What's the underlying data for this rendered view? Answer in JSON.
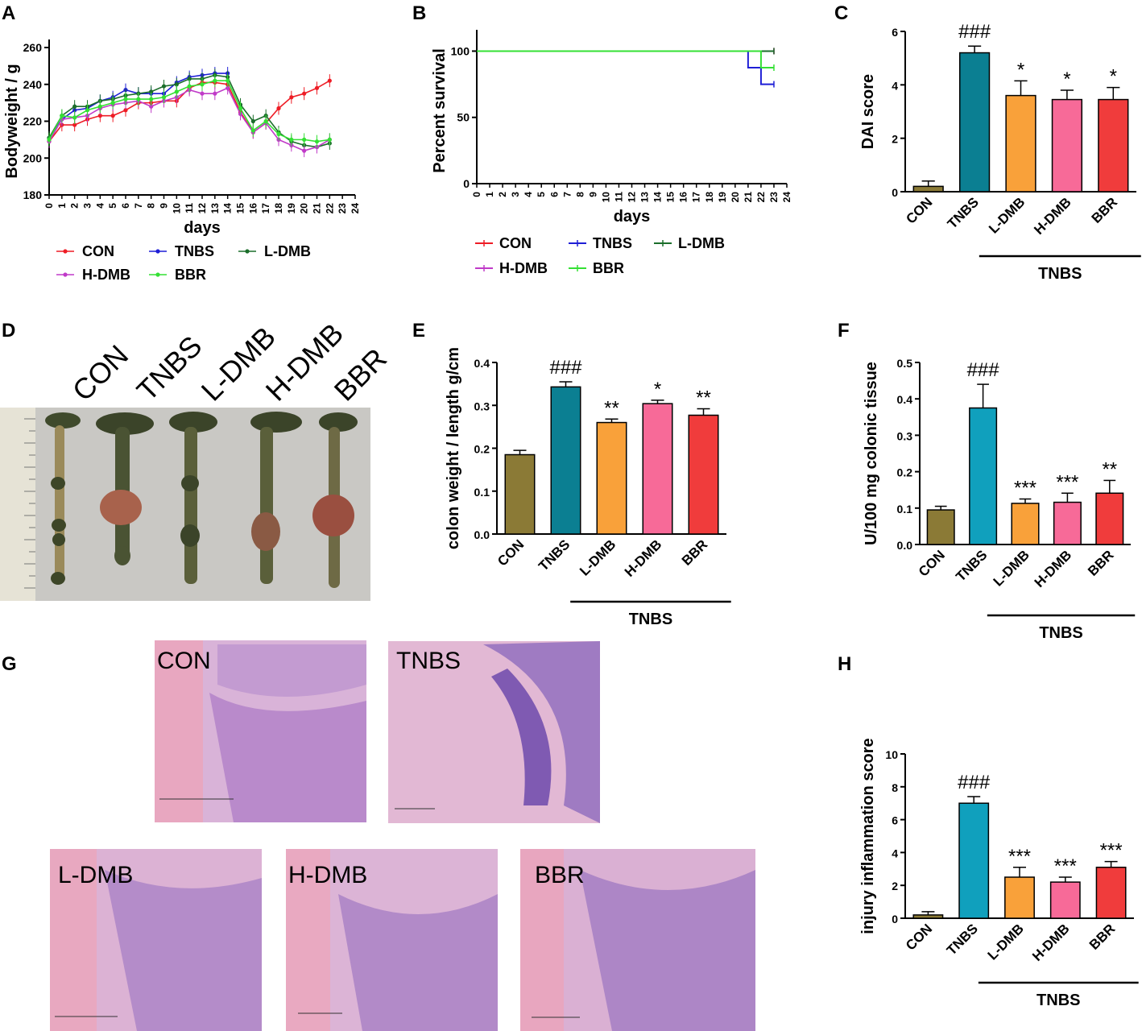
{
  "panels": {
    "a": "A",
    "b": "B",
    "c": "C",
    "d": "D",
    "e": "E",
    "f": "F",
    "g": "G",
    "h": "H"
  },
  "colors": {
    "CON_line": "#ee1c25",
    "TNBS_line": "#1f1fd6",
    "LDMB_line": "#1b6e2b",
    "HDMB_line": "#c03ac8",
    "BBR_line": "#34e034",
    "CON_bar": "#8b7a36",
    "TNBS_bar": "#0b7f92",
    "LDMB_bar": "#f9a13a",
    "HDMB_bar": "#f76a98",
    "BBR_bar": "#f03c3c",
    "TNBS_bar_light": "#10a0bd"
  },
  "groups": [
    "CON",
    "TNBS",
    "L-DMB",
    "H-DMB",
    "BBR"
  ],
  "tnbs_bracket_label": "TNBS",
  "photo": {
    "labels": [
      "CON",
      "TNBS",
      "L-DMB",
      "H-DMB",
      "BBR"
    ]
  },
  "histology": {
    "labels": [
      "CON",
      "TNBS",
      "L-DMB",
      "H-DMB",
      "BBR"
    ]
  },
  "chart_data": [
    {
      "id": "A",
      "type": "line",
      "title": "",
      "xlabel": "days",
      "ylabel": "Bodyweight / g",
      "xlim": [
        0,
        24
      ],
      "ylim": [
        180,
        260
      ],
      "yticks": [
        180,
        200,
        220,
        240,
        260
      ],
      "xticks": [
        0,
        1,
        2,
        3,
        4,
        5,
        6,
        7,
        8,
        9,
        10,
        11,
        12,
        13,
        14,
        15,
        16,
        17,
        18,
        19,
        20,
        21,
        22,
        23,
        24
      ],
      "legend": [
        "CON",
        "TNBS",
        "L-DMB",
        "H-DMB",
        "BBR"
      ],
      "series": [
        {
          "name": "CON",
          "x": [
            0,
            1,
            2,
            3,
            4,
            5,
            6,
            7,
            8,
            9,
            10,
            11,
            12,
            13,
            14,
            15,
            16,
            17,
            18,
            19,
            20,
            21,
            22
          ],
          "values": [
            209,
            218,
            218,
            221,
            223,
            223,
            226,
            230,
            230,
            231,
            231,
            238,
            241,
            241,
            240,
            225,
            214,
            219,
            227,
            233,
            235,
            238,
            242
          ]
        },
        {
          "name": "TNBS",
          "x": [
            0,
            1,
            2,
            3,
            4,
            5,
            6,
            7,
            8,
            9,
            10,
            11,
            12,
            13,
            14
          ],
          "values": [
            211,
            221,
            226,
            227,
            231,
            233,
            237,
            235,
            235,
            235,
            241,
            244,
            245,
            246,
            246
          ]
        },
        {
          "name": "L-DMB",
          "x": [
            0,
            1,
            2,
            3,
            4,
            5,
            6,
            7,
            8,
            9,
            10,
            11,
            12,
            13,
            14,
            15,
            16,
            17,
            18,
            19,
            20,
            21,
            22
          ],
          "values": [
            211,
            223,
            228,
            228,
            231,
            232,
            234,
            235,
            236,
            239,
            240,
            243,
            243,
            245,
            244,
            229,
            220,
            223,
            214,
            209,
            207,
            206,
            208
          ]
        },
        {
          "name": "H-DMB",
          "x": [
            0,
            1,
            2,
            3,
            4,
            5,
            6,
            7,
            8,
            9,
            10,
            11,
            12,
            13,
            14,
            15,
            16,
            17,
            18,
            19,
            20,
            21,
            22
          ],
          "values": [
            209,
            221,
            222,
            223,
            227,
            229,
            230,
            231,
            228,
            231,
            233,
            237,
            235,
            235,
            238,
            224,
            214,
            219,
            210,
            207,
            204,
            206,
            210
          ]
        },
        {
          "name": "BBR",
          "x": [
            0,
            1,
            2,
            3,
            4,
            5,
            6,
            7,
            8,
            9,
            10,
            11,
            12,
            13,
            14,
            15,
            16,
            17,
            18,
            19,
            20,
            21,
            22
          ],
          "values": [
            210,
            223,
            222,
            226,
            228,
            230,
            232,
            232,
            232,
            233,
            236,
            239,
            240,
            242,
            242,
            227,
            215,
            220,
            213,
            210,
            210,
            209,
            210
          ]
        }
      ]
    },
    {
      "id": "B",
      "type": "line",
      "title": "",
      "xlabel": "days",
      "ylabel": "Percent survival",
      "xlim": [
        0,
        24
      ],
      "ylim": [
        0,
        110
      ],
      "yticks": [
        0,
        50,
        100
      ],
      "xticks": [
        0,
        1,
        2,
        3,
        4,
        5,
        6,
        7,
        8,
        9,
        10,
        11,
        12,
        13,
        14,
        15,
        16,
        17,
        18,
        19,
        20,
        21,
        22,
        23,
        24
      ],
      "legend": [
        "CON",
        "TNBS",
        "L-DMB",
        "H-DMB",
        "BBR"
      ],
      "series": [
        {
          "name": "CON",
          "steps": [
            [
              0,
              100
            ],
            [
              23,
              100
            ]
          ]
        },
        {
          "name": "TNBS",
          "steps": [
            [
              0,
              100
            ],
            [
              21,
              100
            ],
            [
              21,
              87.5
            ],
            [
              22,
              87.5
            ],
            [
              22,
              75
            ],
            [
              23,
              75
            ]
          ]
        },
        {
          "name": "L-DMB",
          "steps": [
            [
              0,
              100
            ],
            [
              23,
              100
            ]
          ]
        },
        {
          "name": "H-DMB",
          "steps": [
            [
              0,
              100
            ],
            [
              23,
              100
            ]
          ]
        },
        {
          "name": "BBR",
          "steps": [
            [
              0,
              100
            ],
            [
              22,
              100
            ],
            [
              22,
              87.5
            ],
            [
              23,
              87.5
            ]
          ]
        }
      ]
    },
    {
      "id": "C",
      "type": "bar",
      "ylabel": "DAI score",
      "ylim": [
        0,
        6
      ],
      "yticks": [
        0,
        2,
        4,
        6
      ],
      "categories": [
        "CON",
        "TNBS",
        "L-DMB",
        "H-DMB",
        "BBR"
      ],
      "values": [
        0.2,
        5.2,
        3.6,
        3.45,
        3.45
      ],
      "errors": [
        0.2,
        0.25,
        0.55,
        0.35,
        0.45
      ],
      "annotations": [
        "",
        "###",
        "*",
        "*",
        "*"
      ]
    },
    {
      "id": "E",
      "type": "bar",
      "ylabel": "colon weight / length g/cm",
      "ylim": [
        0,
        0.4
      ],
      "yticks": [
        "0.0",
        "0.1",
        "0.2",
        "0.3",
        "0.4"
      ],
      "categories": [
        "CON",
        "TNBS",
        "L-DMB",
        "H-DMB",
        "BBR"
      ],
      "values": [
        0.185,
        0.343,
        0.26,
        0.304,
        0.277
      ],
      "errors": [
        0.01,
        0.012,
        0.008,
        0.008,
        0.015
      ],
      "annotations": [
        "",
        "###",
        "**",
        "*",
        "**"
      ]
    },
    {
      "id": "F",
      "type": "bar",
      "ylabel": "U/100 mg colonic tissue",
      "ylim": [
        0,
        0.5
      ],
      "yticks": [
        "0.0",
        "0.1",
        "0.2",
        "0.3",
        "0.4",
        "0.5"
      ],
      "categories": [
        "CON",
        "TNBS",
        "L-DMB",
        "H-DMB",
        "BBR"
      ],
      "values": [
        0.095,
        0.375,
        0.113,
        0.116,
        0.141
      ],
      "errors": [
        0.01,
        0.065,
        0.012,
        0.025,
        0.035
      ],
      "annotations": [
        "",
        "###",
        "***",
        "***",
        "**"
      ]
    },
    {
      "id": "H",
      "type": "bar",
      "ylabel": "injury inflammation score",
      "ylim": [
        0,
        10
      ],
      "yticks": [
        0,
        2,
        4,
        6,
        8,
        10
      ],
      "categories": [
        "CON",
        "TNBS",
        "L-DMB",
        "H-DMB",
        "BBR"
      ],
      "values": [
        0.2,
        7.0,
        2.5,
        2.2,
        3.1
      ],
      "errors": [
        0.2,
        0.4,
        0.6,
        0.3,
        0.35
      ],
      "annotations": [
        "",
        "###",
        "***",
        "***",
        "***"
      ]
    }
  ]
}
